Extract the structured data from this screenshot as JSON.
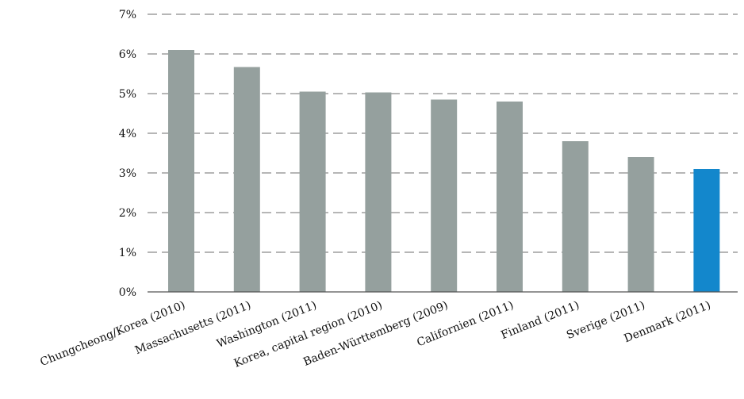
{
  "chart_data": {
    "type": "bar",
    "categories": [
      "Chungcheong/Korea (2010)",
      "Massachusetts (2011)",
      "Washington (2011)",
      "Korea, capital region (2010)",
      "Baden-Württemberg (2009)",
      "Californien (2011)",
      "Finland (2011)",
      "Sverige (2011)",
      "Denmark (2011)"
    ],
    "values": [
      6.1,
      5.67,
      5.05,
      5.03,
      4.85,
      4.8,
      3.8,
      3.4,
      3.1
    ],
    "title": "",
    "xlabel": "",
    "ylabel": "",
    "ylim": [
      0,
      7
    ],
    "y_ticks": [
      0,
      1,
      2,
      3,
      4,
      5,
      6,
      7
    ],
    "y_tick_labels": [
      "0%",
      "1%",
      "2%",
      "3%",
      "4%",
      "5%",
      "6%",
      "7%"
    ],
    "grid": "dashed horizontal",
    "colors": {
      "bar": "#95a09e",
      "highlight": "#1387cc",
      "grid": "#8a8a8a",
      "axis": "#555555"
    },
    "highlight_index": 8
  }
}
